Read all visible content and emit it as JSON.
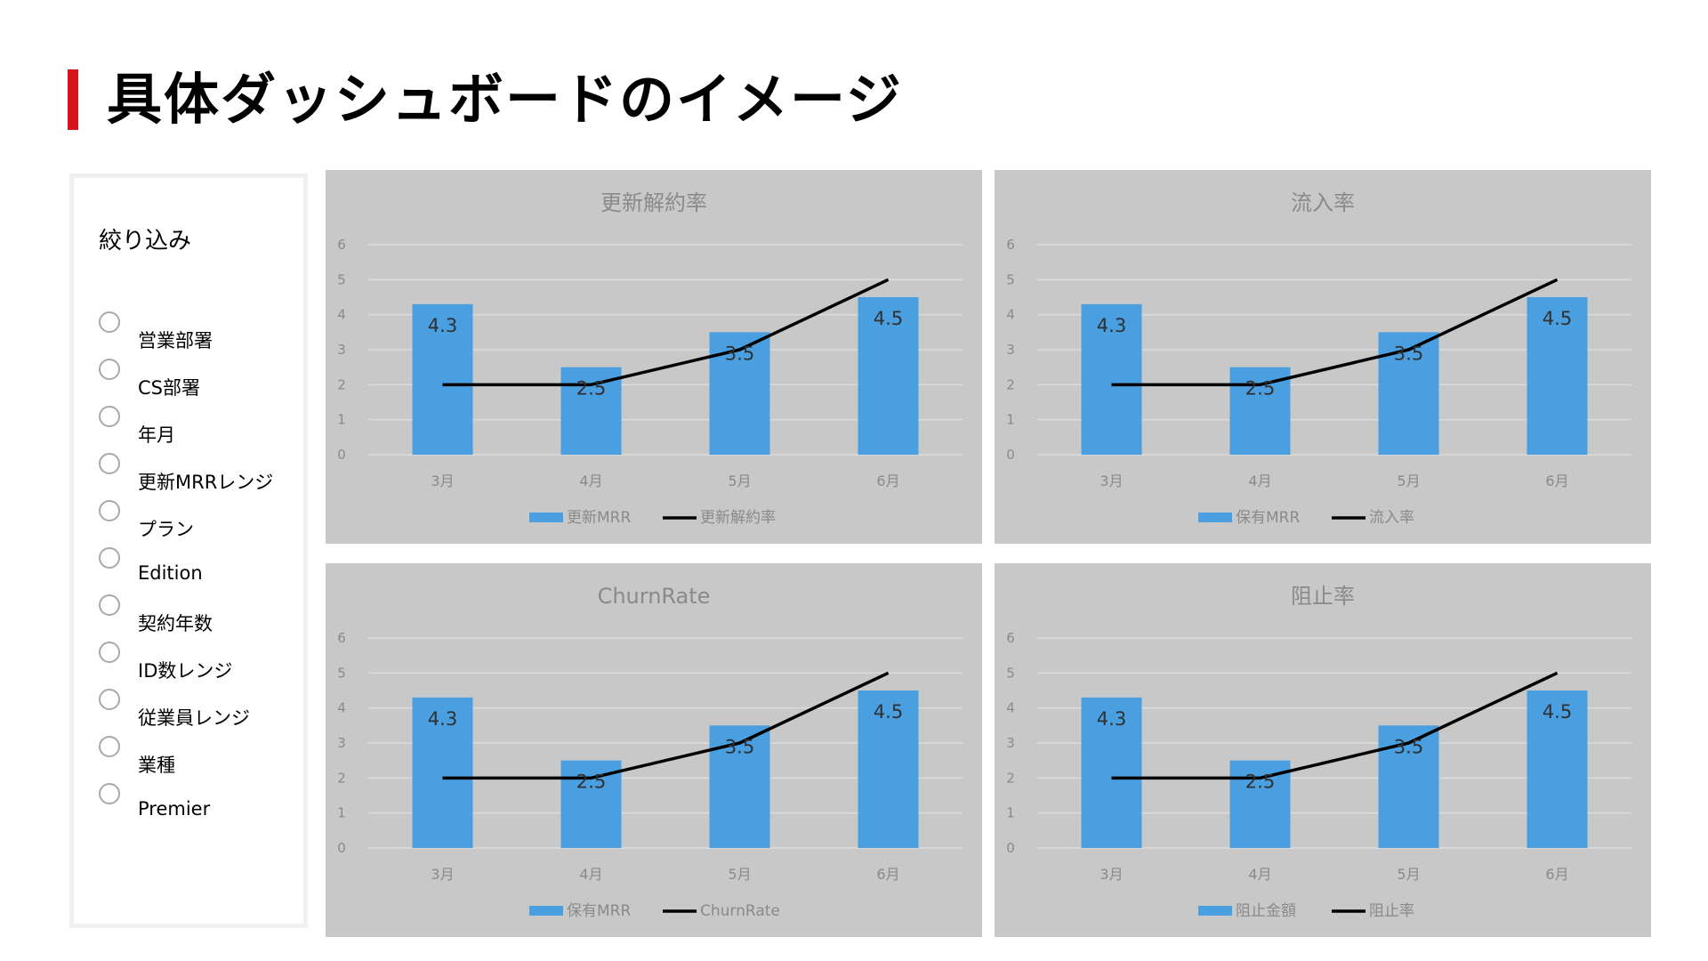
{
  "page": {
    "title": "具体ダッシュボードのイメージ"
  },
  "filter": {
    "title": "絞り込み",
    "items": [
      "営業部署",
      "CS部署",
      "年月",
      "更新MRRレンジ",
      "プラン",
      "Edition",
      "契約年数",
      "ID数レンジ",
      "従業員レンジ",
      "業種",
      "Premier"
    ]
  },
  "colors": {
    "accent": "#d7141d",
    "bar": "#4a9fe0",
    "line": "#000000",
    "panel": "#c8c8c8",
    "grid": "#dcdcdc"
  },
  "chart_data": [
    {
      "type": "bar",
      "title": "更新解約率",
      "categories": [
        "3月",
        "4月",
        "5月",
        "6月"
      ],
      "yticks": [
        "0",
        "1",
        "2",
        "3",
        "4",
        "5",
        "6"
      ],
      "ylim": [
        0,
        6
      ],
      "grid": true,
      "legend_position": "bottom",
      "series": [
        {
          "name": "更新MRR",
          "type": "bar",
          "values": [
            4.3,
            2.5,
            3.5,
            4.5
          ],
          "labels": [
            "4.3",
            "2.5",
            "3.5",
            "4.5"
          ]
        },
        {
          "name": "更新解約率",
          "type": "line",
          "values": [
            2,
            2,
            3,
            5
          ]
        }
      ]
    },
    {
      "type": "bar",
      "title": "流入率",
      "categories": [
        "3月",
        "4月",
        "5月",
        "6月"
      ],
      "yticks": [
        "0",
        "1",
        "2",
        "3",
        "4",
        "5",
        "6"
      ],
      "ylim": [
        0,
        6
      ],
      "grid": true,
      "legend_position": "bottom",
      "series": [
        {
          "name": "保有MRR",
          "type": "bar",
          "values": [
            4.3,
            2.5,
            3.5,
            4.5
          ],
          "labels": [
            "4.3",
            "2.5",
            "3.5",
            "4.5"
          ]
        },
        {
          "name": "流入率",
          "type": "line",
          "values": [
            2,
            2,
            3,
            5
          ]
        }
      ]
    },
    {
      "type": "bar",
      "title": "ChurnRate",
      "categories": [
        "3月",
        "4月",
        "5月",
        "6月"
      ],
      "yticks": [
        "0",
        "1",
        "2",
        "3",
        "4",
        "5",
        "6"
      ],
      "ylim": [
        0,
        6
      ],
      "grid": true,
      "legend_position": "bottom",
      "series": [
        {
          "name": "保有MRR",
          "type": "bar",
          "values": [
            4.3,
            2.5,
            3.5,
            4.5
          ],
          "labels": [
            "4.3",
            "2.5",
            "3.5",
            "4.5"
          ]
        },
        {
          "name": "ChurnRate",
          "type": "line",
          "values": [
            2,
            2,
            3,
            5
          ]
        }
      ]
    },
    {
      "type": "bar",
      "title": "阻止率",
      "categories": [
        "3月",
        "4月",
        "5月",
        "6月"
      ],
      "yticks": [
        "0",
        "1",
        "2",
        "3",
        "4",
        "5",
        "6"
      ],
      "ylim": [
        0,
        6
      ],
      "grid": true,
      "legend_position": "bottom",
      "series": [
        {
          "name": "阻止金額",
          "type": "bar",
          "values": [
            4.3,
            2.5,
            3.5,
            4.5
          ],
          "labels": [
            "4.3",
            "2.5",
            "3.5",
            "4.5"
          ]
        },
        {
          "name": "阻止率",
          "type": "line",
          "values": [
            2,
            2,
            3,
            5
          ]
        }
      ]
    }
  ]
}
